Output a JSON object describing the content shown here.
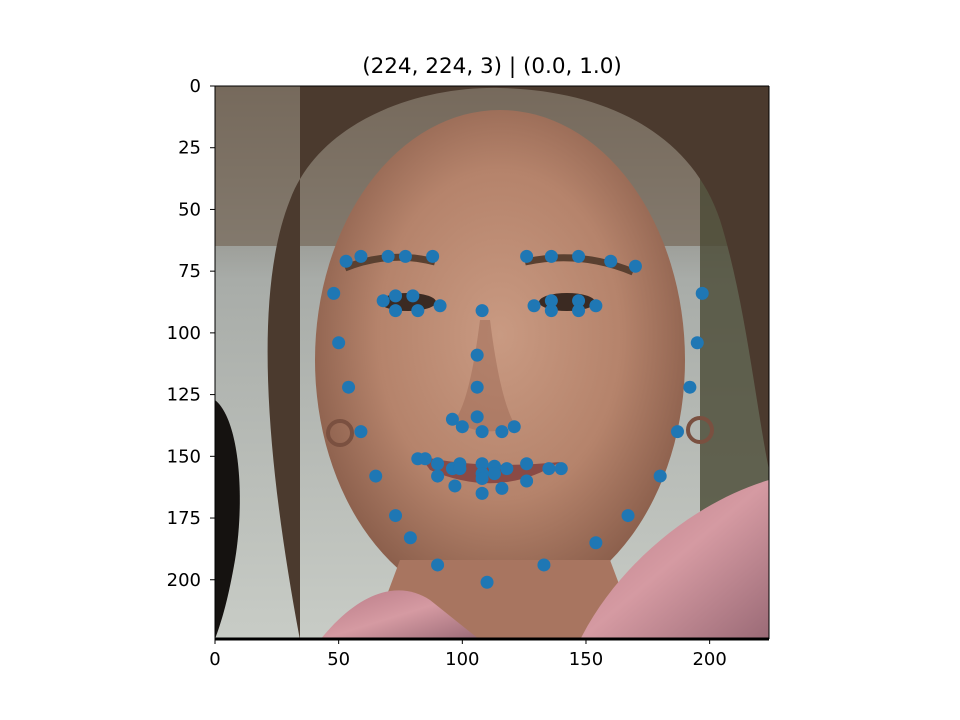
{
  "chart_data": {
    "type": "scatter",
    "title": "(224, 224, 3) | (0.0, 1.0)",
    "background": "image",
    "image_content": "face-photo",
    "xlim": [
      0,
      224
    ],
    "ylim": [
      224,
      0
    ],
    "xticks": [
      0,
      50,
      100,
      150,
      200
    ],
    "yticks": [
      0,
      25,
      50,
      75,
      100,
      125,
      150,
      175,
      200
    ],
    "marker_color": "#1f77b4",
    "points": [
      [
        48,
        84
      ],
      [
        50,
        104
      ],
      [
        54,
        122
      ],
      [
        59,
        140
      ],
      [
        65,
        158
      ],
      [
        73,
        174
      ],
      [
        79,
        183
      ],
      [
        90,
        194
      ],
      [
        110,
        201
      ],
      [
        133,
        194
      ],
      [
        154,
        185
      ],
      [
        167,
        174
      ],
      [
        180,
        158
      ],
      [
        187,
        140
      ],
      [
        192,
        122
      ],
      [
        195,
        104
      ],
      [
        197,
        84
      ],
      [
        53,
        71
      ],
      [
        59,
        69
      ],
      [
        70,
        69
      ],
      [
        77,
        69
      ],
      [
        88,
        69
      ],
      [
        126,
        69
      ],
      [
        136,
        69
      ],
      [
        147,
        69
      ],
      [
        160,
        71
      ],
      [
        170,
        73
      ],
      [
        108,
        91
      ],
      [
        106,
        109
      ],
      [
        106,
        122
      ],
      [
        106,
        134
      ],
      [
        96,
        135
      ],
      [
        100,
        138
      ],
      [
        108,
        140
      ],
      [
        116,
        140
      ],
      [
        121,
        138
      ],
      [
        68,
        87
      ],
      [
        73,
        85
      ],
      [
        80,
        85
      ],
      [
        73,
        91
      ],
      [
        82,
        91
      ],
      [
        91,
        89
      ],
      [
        129,
        89
      ],
      [
        136,
        87
      ],
      [
        147,
        87
      ],
      [
        136,
        91
      ],
      [
        147,
        91
      ],
      [
        154,
        89
      ],
      [
        82,
        151
      ],
      [
        85,
        151
      ],
      [
        90,
        153
      ],
      [
        96,
        155
      ],
      [
        99,
        153
      ],
      [
        108,
        153
      ],
      [
        113,
        154
      ],
      [
        118,
        155
      ],
      [
        126,
        153
      ],
      [
        135,
        155
      ],
      [
        140,
        155
      ],
      [
        126,
        160
      ],
      [
        116,
        163
      ],
      [
        108,
        165
      ],
      [
        97,
        162
      ],
      [
        90,
        158
      ],
      [
        99,
        155
      ],
      [
        108,
        157
      ],
      [
        113,
        157
      ],
      [
        108,
        159
      ]
    ]
  }
}
